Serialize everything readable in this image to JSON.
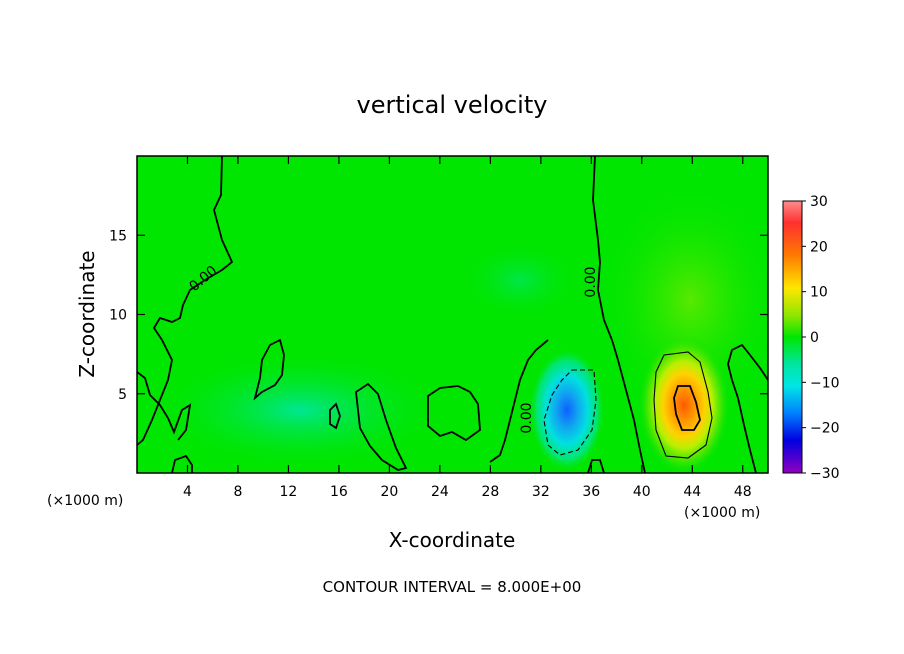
{
  "chart_data": {
    "type": "heatmap",
    "title": "vertical velocity",
    "xlabel": "X-coordinate",
    "ylabel": "Z-coordinate",
    "x_unit_left": "(×1000 m)",
    "x_unit_right": "(×1000 m)",
    "xlim": [
      0,
      50
    ],
    "ylim": [
      0,
      20
    ],
    "x_ticks": [
      4,
      8,
      12,
      16,
      20,
      24,
      28,
      32,
      36,
      40,
      44,
      48
    ],
    "y_ticks": [
      5,
      10,
      15
    ],
    "colorbar": {
      "range": [
        -30,
        30
      ],
      "ticks": [
        30,
        20,
        10,
        0,
        -10,
        -20,
        -30
      ],
      "tick_labels": [
        "30",
        "20",
        "10",
        "0",
        "−10",
        "−20",
        "−30"
      ]
    },
    "contour_label": "0.00",
    "footnote": "CONTOUR INTERVAL = 8.000E+00",
    "features": [
      {
        "kind": "updraft",
        "x": 43.5,
        "z": 4,
        "peak": 24
      },
      {
        "kind": "downdraft",
        "x": 34,
        "z": 4.5,
        "peak": -12
      }
    ]
  }
}
